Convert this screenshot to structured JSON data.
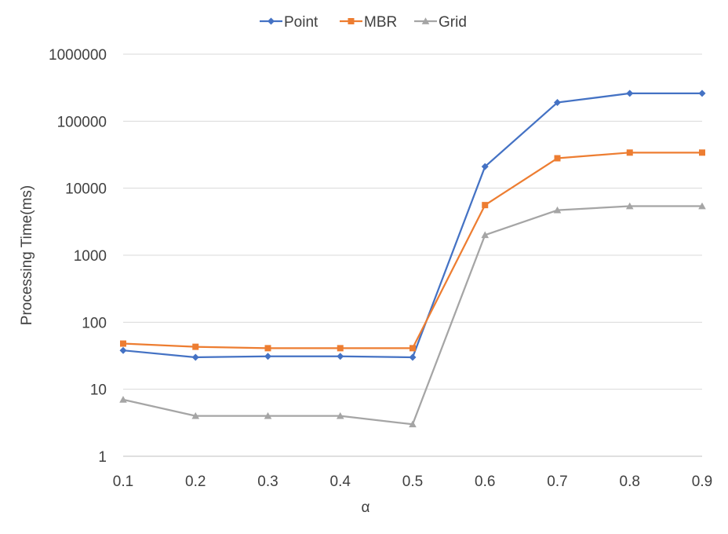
{
  "chart_data": {
    "type": "line",
    "title": "",
    "xlabel": "α",
    "ylabel": "Processing Time(ms)",
    "y_scale": "log",
    "ylim": [
      1,
      1000000
    ],
    "y_ticks": [
      "1",
      "10",
      "100",
      "1000",
      "10000",
      "100000",
      "1000000"
    ],
    "x": [
      "0.1",
      "0.2",
      "0.3",
      "0.4",
      "0.5",
      "0.6",
      "0.7",
      "0.8",
      "0.9"
    ],
    "grid": true,
    "legend_position": "top",
    "series": [
      {
        "name": "Point",
        "color": "#4472c4",
        "marker": "diamond",
        "values": [
          38,
          30,
          31,
          31,
          30,
          21000,
          190000,
          260000,
          260000
        ]
      },
      {
        "name": "MBR",
        "color": "#ed7d31",
        "marker": "square",
        "values": [
          48,
          43,
          41,
          41,
          41,
          5600,
          28000,
          34000,
          34000
        ]
      },
      {
        "name": "Grid",
        "color": "#a5a5a5",
        "marker": "triangle",
        "values": [
          7,
          4,
          4,
          4,
          3,
          2000,
          4700,
          5400,
          5400
        ]
      }
    ]
  }
}
